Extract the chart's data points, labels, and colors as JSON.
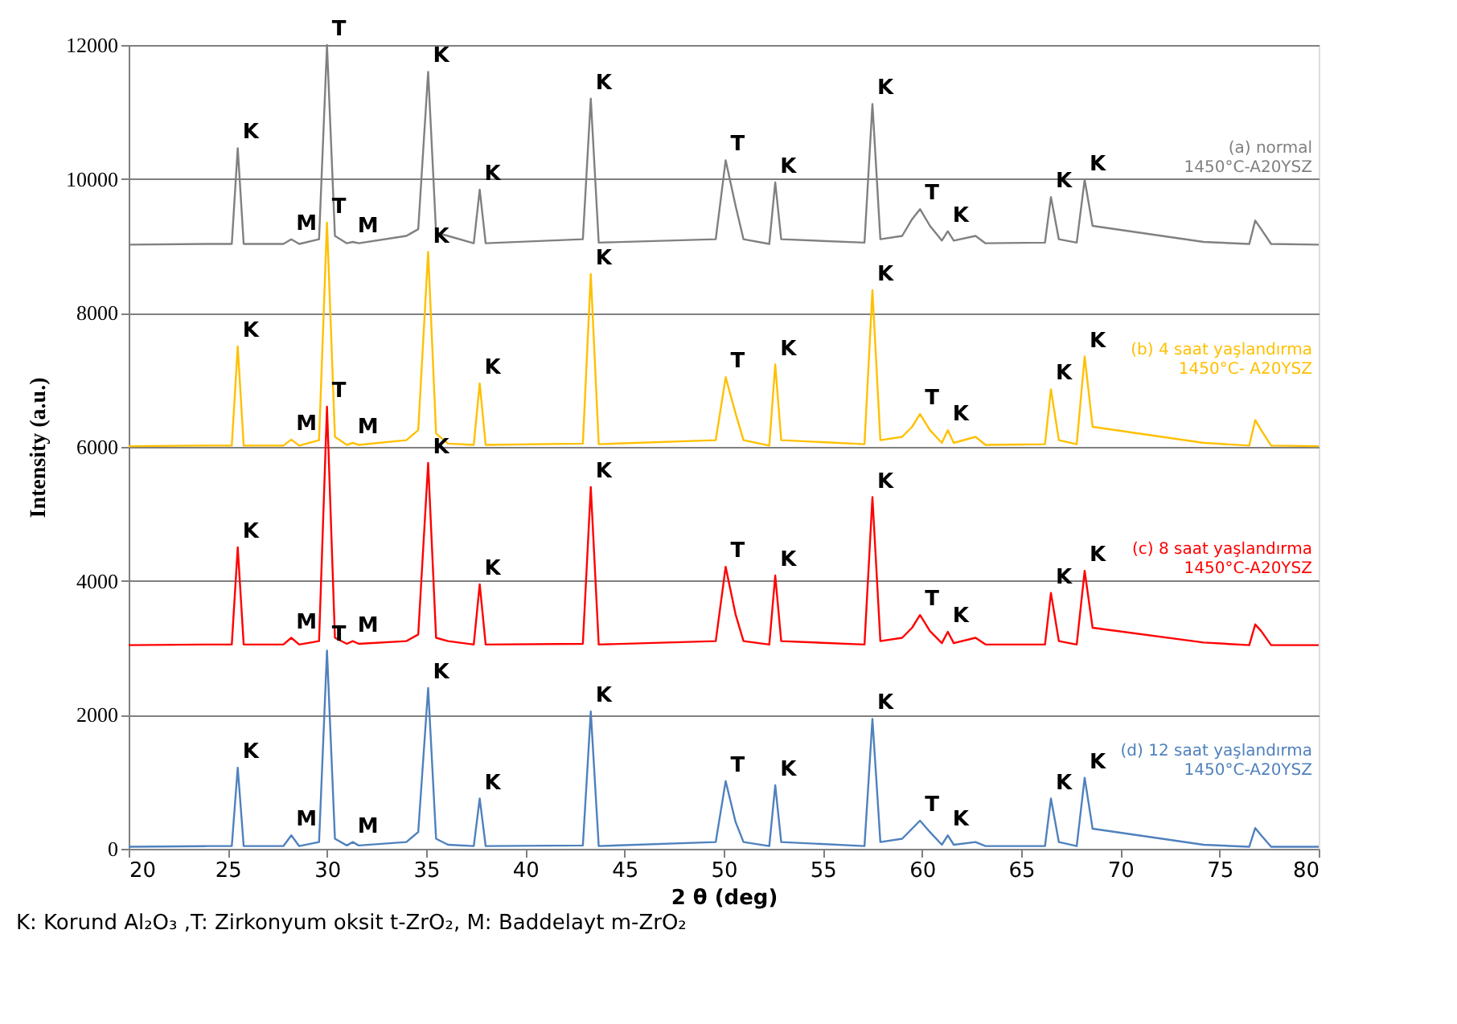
{
  "chart_data": {
    "type": "line",
    "xlabel": "2 θ (deg)",
    "ylabel": "Intensity  (a.u.)",
    "x": [
      20,
      24,
      25.2,
      25.5,
      25.8,
      27.8,
      28.2,
      28.6,
      29.6,
      30.0,
      30.4,
      31.0,
      31.3,
      31.6,
      34.0,
      34.6,
      35.1,
      35.5,
      36.1,
      37.4,
      37.7,
      38.0,
      42.9,
      43.3,
      43.7,
      49.6,
      50.1,
      50.6,
      51.0,
      52.3,
      52.6,
      52.9,
      57.1,
      57.5,
      57.9,
      59.0,
      59.5,
      59.9,
      60.4,
      61.0,
      61.3,
      61.6,
      62.7,
      63.2,
      66.2,
      66.5,
      66.9,
      67.8,
      68.2,
      68.6,
      74.2,
      76.5,
      76.8,
      77.1,
      77.6,
      80
    ],
    "series": [
      {
        "name": "(a)  normal\n1450°C-A20YSZ",
        "color": "#808080",
        "values": [
          9020,
          9030,
          9030,
          10460,
          9030,
          9030,
          9100,
          9030,
          9100,
          12000,
          9150,
          9040,
          9060,
          9040,
          9150,
          9250,
          11600,
          9200,
          9150,
          9040,
          9840,
          9040,
          9100,
          11200,
          9050,
          9100,
          10280,
          9600,
          9100,
          9030,
          9950,
          9100,
          9050,
          11120,
          9100,
          9150,
          9400,
          9550,
          9300,
          9080,
          9220,
          9080,
          9150,
          9040,
          9050,
          9730,
          9100,
          9050,
          9990,
          9300,
          9060,
          9030,
          9380,
          9250,
          9030,
          9020
        ]
      },
      {
        "name": "(b)  4 saat yaşlandırma\n1450°C- A20YSZ",
        "color": "#ffc000",
        "values": [
          6010,
          6020,
          6020,
          7500,
          6020,
          6020,
          6110,
          6020,
          6100,
          9350,
          6150,
          6030,
          6060,
          6030,
          6100,
          6250,
          8910,
          6200,
          6050,
          6030,
          6950,
          6030,
          6050,
          8580,
          6040,
          6100,
          7040,
          6500,
          6100,
          6020,
          7230,
          6100,
          6040,
          8340,
          6100,
          6150,
          6300,
          6490,
          6250,
          6060,
          6250,
          6060,
          6150,
          6030,
          6040,
          6860,
          6100,
          6040,
          7350,
          6300,
          6060,
          6020,
          6400,
          6250,
          6020,
          6010
        ]
      },
      {
        "name": "(c)  8 saat yaşlandırma\n1450°C-A20YSZ",
        "color": "#ff0000",
        "values": [
          3040,
          3050,
          3050,
          4500,
          3050,
          3050,
          3150,
          3050,
          3100,
          6600,
          3150,
          3060,
          3100,
          3060,
          3100,
          3200,
          5760,
          3150,
          3100,
          3050,
          3950,
          3050,
          3060,
          5400,
          3050,
          3100,
          4210,
          3500,
          3100,
          3050,
          4080,
          3100,
          3050,
          5250,
          3100,
          3150,
          3300,
          3490,
          3250,
          3070,
          3240,
          3070,
          3150,
          3050,
          3050,
          3820,
          3100,
          3050,
          4150,
          3300,
          3080,
          3040,
          3350,
          3250,
          3040,
          3040
        ]
      },
      {
        "name": "(d)  12 saat yaşlandırma\n1450°C-A20YSZ",
        "color": "#4f81bd",
        "values": [
          30,
          40,
          40,
          1210,
          40,
          40,
          200,
          40,
          100,
          2960,
          150,
          50,
          100,
          50,
          100,
          250,
          2400,
          150,
          60,
          40,
          750,
          40,
          50,
          2050,
          40,
          100,
          1010,
          400,
          100,
          40,
          950,
          100,
          40,
          1940,
          100,
          150,
          300,
          420,
          250,
          60,
          200,
          60,
          100,
          40,
          40,
          750,
          100,
          40,
          1060,
          300,
          60,
          30,
          310,
          200,
          30,
          30
        ]
      }
    ],
    "xlim": [
      20,
      80
    ],
    "xticks": [
      20,
      25,
      30,
      35,
      40,
      45,
      50,
      55,
      60,
      65,
      70,
      75,
      80
    ],
    "ylim": [
      0,
      12000
    ],
    "yticks": [
      0,
      2000,
      4000,
      6000,
      8000,
      10000,
      12000
    ],
    "grid": "y",
    "legend": false,
    "marker": "none",
    "line_style": "solid",
    "annotations": [
      {
        "text": "K",
        "x": 25.5,
        "y": 10460
      },
      {
        "text": "M",
        "x": 28.2,
        "y": 9100
      },
      {
        "text": "T",
        "x": 30.0,
        "y": 12000
      },
      {
        "text": "M",
        "x": 31.3,
        "y": 9060
      },
      {
        "text": "K",
        "x": 35.1,
        "y": 11600
      },
      {
        "text": "K",
        "x": 37.7,
        "y": 9840
      },
      {
        "text": "K",
        "x": 43.3,
        "y": 11200
      },
      {
        "text": "T",
        "x": 50.1,
        "y": 10280
      },
      {
        "text": "K",
        "x": 52.6,
        "y": 9950
      },
      {
        "text": "K",
        "x": 57.5,
        "y": 11120
      },
      {
        "text": "T",
        "x": 59.9,
        "y": 9550
      },
      {
        "text": "K",
        "x": 61.3,
        "y": 9220
      },
      {
        "text": "K",
        "x": 66.5,
        "y": 9730
      },
      {
        "text": "K",
        "x": 68.2,
        "y": 9990
      },
      {
        "text": "K",
        "x": 25.5,
        "y": 7500
      },
      {
        "text": "M",
        "x": 28.2,
        "y": 6110
      },
      {
        "text": "T",
        "x": 30.0,
        "y": 9350
      },
      {
        "text": "M",
        "x": 31.3,
        "y": 6060
      },
      {
        "text": "K",
        "x": 35.1,
        "y": 8910
      },
      {
        "text": "K",
        "x": 37.7,
        "y": 6950
      },
      {
        "text": "K",
        "x": 43.3,
        "y": 8580
      },
      {
        "text": "T",
        "x": 50.1,
        "y": 7040
      },
      {
        "text": "K",
        "x": 52.6,
        "y": 7230
      },
      {
        "text": "K",
        "x": 57.5,
        "y": 8340
      },
      {
        "text": "T",
        "x": 59.9,
        "y": 6490
      },
      {
        "text": "K",
        "x": 61.3,
        "y": 6250
      },
      {
        "text": "K",
        "x": 66.5,
        "y": 6860
      },
      {
        "text": "K",
        "x": 68.2,
        "y": 7350
      },
      {
        "text": "K",
        "x": 25.5,
        "y": 4500
      },
      {
        "text": "M",
        "x": 28.2,
        "y": 3150
      },
      {
        "text": "T",
        "x": 30.0,
        "y": 6600
      },
      {
        "text": "M",
        "x": 31.3,
        "y": 3100
      },
      {
        "text": "K",
        "x": 35.1,
        "y": 5760
      },
      {
        "text": "K",
        "x": 37.7,
        "y": 3950
      },
      {
        "text": "K",
        "x": 43.3,
        "y": 5400
      },
      {
        "text": "T",
        "x": 50.1,
        "y": 4210
      },
      {
        "text": "K",
        "x": 52.6,
        "y": 4080
      },
      {
        "text": "K",
        "x": 57.5,
        "y": 5250
      },
      {
        "text": "T",
        "x": 59.9,
        "y": 3490
      },
      {
        "text": "K",
        "x": 61.3,
        "y": 3240
      },
      {
        "text": "K",
        "x": 66.5,
        "y": 3820
      },
      {
        "text": "K",
        "x": 68.2,
        "y": 4150
      },
      {
        "text": "K",
        "x": 25.5,
        "y": 1210
      },
      {
        "text": "M",
        "x": 28.2,
        "y": 200
      },
      {
        "text": "T",
        "x": 30.0,
        "y": 2960
      },
      {
        "text": "M",
        "x": 31.3,
        "y": 100
      },
      {
        "text": "K",
        "x": 35.1,
        "y": 2400
      },
      {
        "text": "K",
        "x": 37.7,
        "y": 750
      },
      {
        "text": "K",
        "x": 43.3,
        "y": 2050
      },
      {
        "text": "T",
        "x": 50.1,
        "y": 1010
      },
      {
        "text": "K",
        "x": 52.6,
        "y": 950
      },
      {
        "text": "K",
        "x": 57.5,
        "y": 1940
      },
      {
        "text": "T",
        "x": 59.9,
        "y": 420
      },
      {
        "text": "K",
        "x": 61.3,
        "y": 200
      },
      {
        "text": "K",
        "x": 66.5,
        "y": 750
      },
      {
        "text": "K",
        "x": 68.2,
        "y": 1060
      },
      "K: Korund Al₂O₃ ,T: Zirkonyum oksit t-ZrO₂, M: Baddelayt m-ZrO₂"
    ]
  }
}
